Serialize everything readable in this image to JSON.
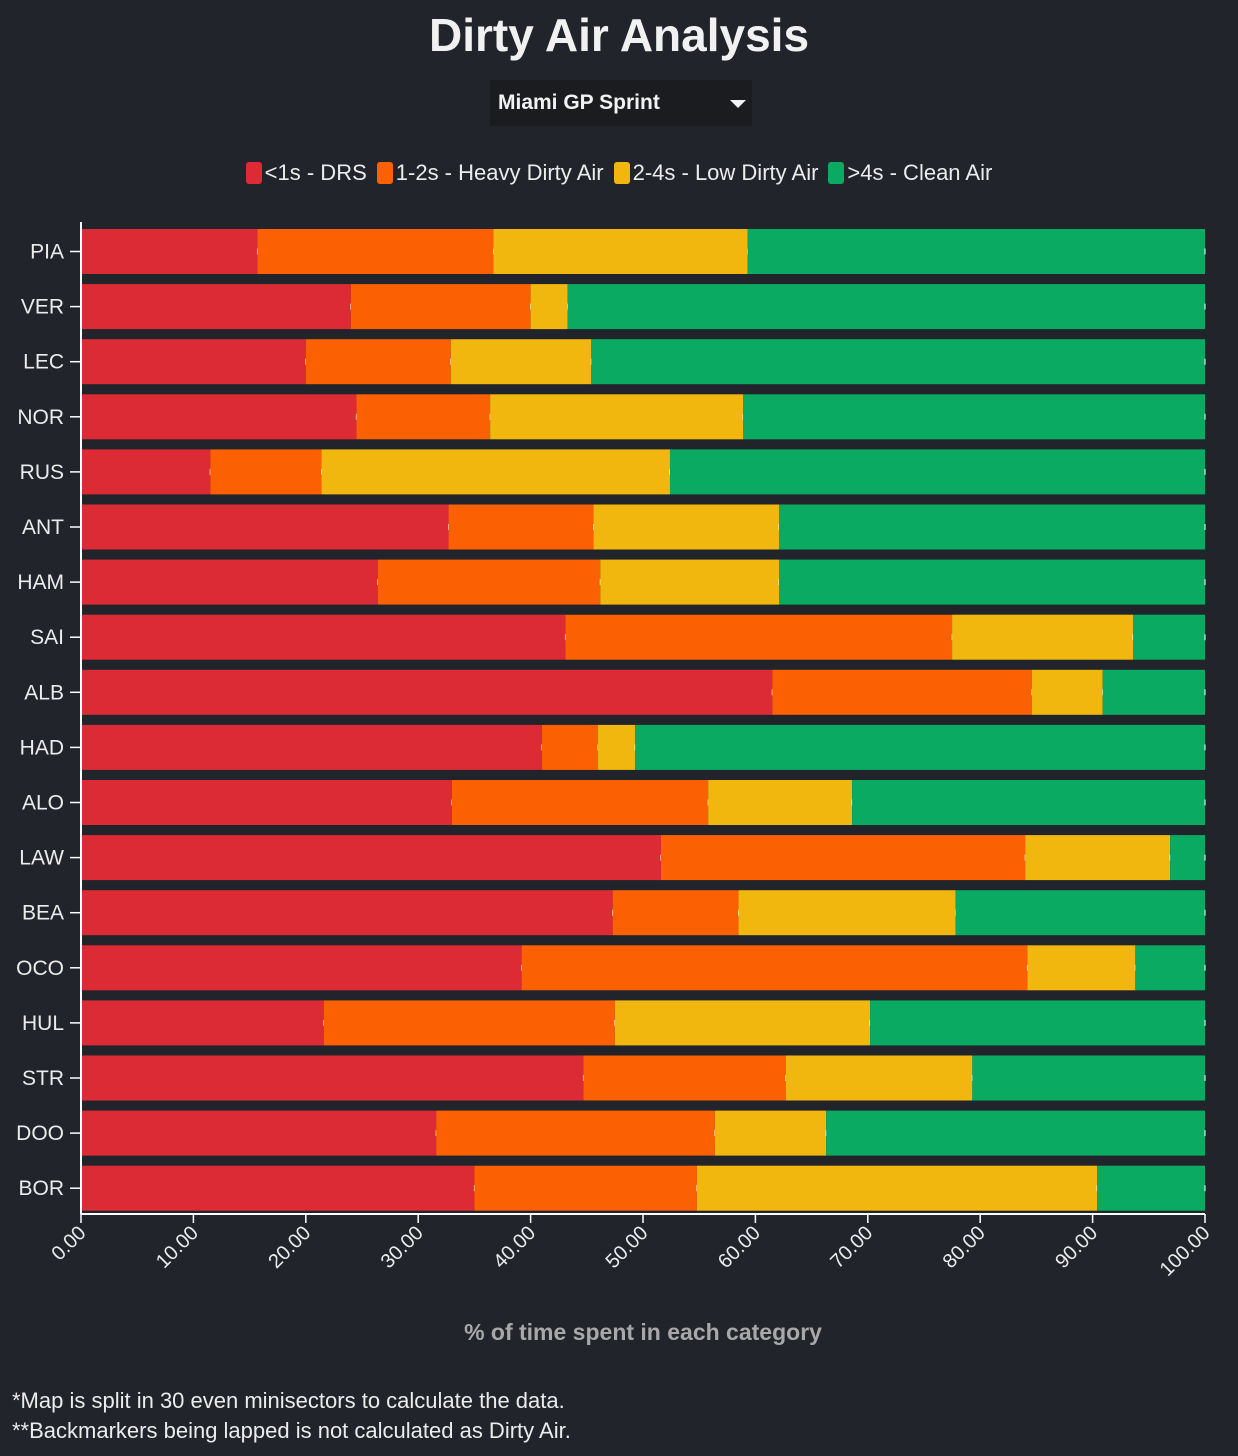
{
  "chart_data": {
    "type": "bar",
    "orientation": "horizontal",
    "stacked": true,
    "title": "Dirty Air Analysis",
    "xlabel": "% of time spent in each category",
    "ylabel": "",
    "xlim": [
      0,
      100
    ],
    "x_ticks": [
      "0.00",
      "10.00",
      "20.00",
      "30.00",
      "40.00",
      "50.00",
      "60.00",
      "70.00",
      "80.00",
      "90.00",
      "100.00"
    ],
    "categories": [
      "PIA",
      "VER",
      "LEC",
      "NOR",
      "RUS",
      "ANT",
      "HAM",
      "SAI",
      "ALB",
      "HAD",
      "ALO",
      "LAW",
      "BEA",
      "OCO",
      "HUL",
      "STR",
      "DOO",
      "BOR"
    ],
    "series": [
      {
        "name": "<1s - DRS",
        "color": "#dc2b34",
        "values": [
          15.7,
          24.0,
          20.0,
          24.5,
          11.5,
          32.7,
          26.4,
          43.1,
          61.5,
          41.0,
          33.0,
          51.6,
          47.3,
          39.2,
          21.6,
          44.7,
          31.6,
          35.0
        ]
      },
      {
        "name": "1-2s - Heavy Dirty Air",
        "color": "#fb6102",
        "values": [
          21.0,
          16.0,
          12.9,
          11.9,
          9.9,
          12.9,
          19.8,
          34.4,
          23.1,
          5.0,
          22.8,
          32.4,
          11.2,
          45.0,
          25.9,
          18.0,
          24.8,
          19.8
        ]
      },
      {
        "name": "2-4s - Low Dirty Air",
        "color": "#f1b70f",
        "values": [
          22.6,
          3.3,
          12.5,
          22.5,
          31.0,
          16.5,
          15.9,
          16.1,
          6.3,
          3.3,
          12.8,
          12.9,
          19.3,
          9.6,
          22.7,
          16.6,
          9.9,
          35.6
        ]
      },
      {
        "name": ">4s - Clean Air",
        "color": "#0aaa63",
        "values": [
          40.7,
          56.7,
          54.6,
          41.1,
          47.6,
          37.9,
          37.9,
          6.4,
          9.1,
          50.7,
          31.4,
          3.1,
          22.2,
          6.2,
          29.8,
          20.7,
          33.7,
          9.6
        ]
      }
    ]
  },
  "page": {
    "title": "Dirty Air Analysis",
    "session_selector": {
      "value": "Miami GP Sprint"
    },
    "footnotes": [
      "*Map is split in 30 even minisectors to calculate the data.",
      "**Backmarkers being lapped is not calculated as Dirty Air."
    ]
  },
  "colors": {
    "background": "#21242b",
    "axis": "#ffffff",
    "axis_label": "#a8a8a8"
  }
}
